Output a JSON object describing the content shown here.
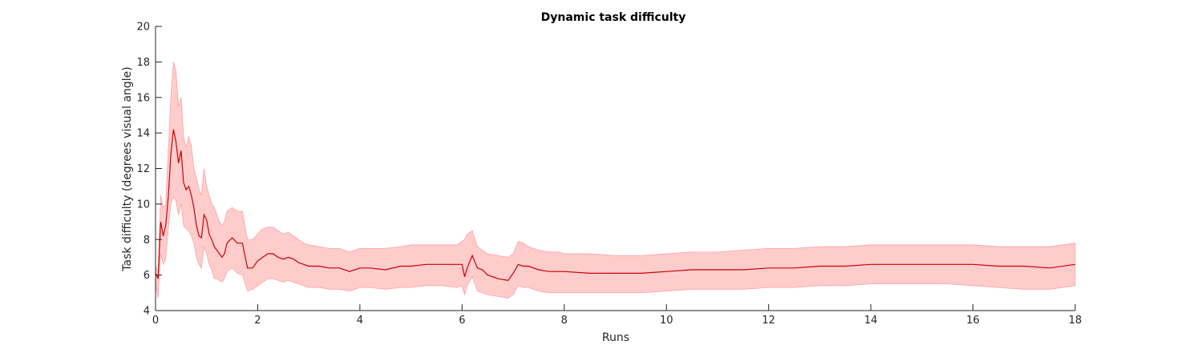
{
  "chart_data": {
    "type": "area",
    "title": "Dynamic task difficulty",
    "xlabel": "Runs",
    "ylabel": "Task difficulty (degrees visual angle)",
    "xlim": [
      0,
      18
    ],
    "ylim": [
      4,
      20
    ],
    "xticks": [
      "0",
      "2",
      "4",
      "6",
      "8",
      "10",
      "12",
      "14",
      "16",
      "18"
    ],
    "yticks": [
      "4",
      "6",
      "8",
      "10",
      "12",
      "14",
      "16",
      "18",
      "20"
    ],
    "grid": false,
    "colors": {
      "line": "#cc0000",
      "band": "#ffcccc",
      "band_edge": "#ff9999",
      "axis": "#262626"
    },
    "series": [
      {
        "x": [
          0,
          0.05,
          0.1,
          0.15,
          0.2,
          0.25,
          0.3,
          0.35,
          0.4,
          0.45,
          0.5,
          0.55,
          0.6,
          0.65,
          0.7,
          0.75,
          0.8,
          0.85,
          0.9,
          0.95,
          1.0,
          1.05,
          1.1,
          1.15,
          1.2,
          1.25,
          1.3,
          1.35,
          1.4,
          1.5,
          1.6,
          1.7,
          1.8,
          1.9,
          2.0,
          2.05,
          2.1,
          2.2,
          2.3,
          2.4,
          2.5,
          2.6,
          2.7,
          2.8,
          2.9,
          3.0,
          3.2,
          3.4,
          3.6,
          3.8,
          4.0,
          4.2,
          4.5,
          4.8,
          5.0,
          5.3,
          5.6,
          5.9,
          6.0,
          6.05,
          6.1,
          6.2,
          6.3,
          6.4,
          6.5,
          6.7,
          6.9,
          7.0,
          7.1,
          7.2,
          7.3,
          7.5,
          7.7,
          7.9,
          8.0,
          8.5,
          9.0,
          9.5,
          10.0,
          10.5,
          11.0,
          11.5,
          12.0,
          12.5,
          13.0,
          13.5,
          14.0,
          14.5,
          15.0,
          15.5,
          16.0,
          16.5,
          17.0,
          17.5,
          18.0
        ],
        "mean": [
          6.1,
          5.8,
          9.0,
          8.2,
          8.8,
          10.4,
          12.8,
          14.2,
          13.5,
          12.3,
          13.0,
          11.2,
          10.8,
          11.0,
          10.5,
          9.8,
          8.8,
          8.2,
          8.1,
          9.4,
          9.1,
          8.3,
          8.0,
          7.6,
          7.4,
          7.2,
          7.0,
          7.2,
          7.8,
          8.1,
          7.8,
          7.8,
          6.4,
          6.4,
          6.8,
          6.9,
          7.0,
          7.2,
          7.2,
          7.0,
          6.9,
          7.0,
          6.9,
          6.7,
          6.6,
          6.5,
          6.5,
          6.4,
          6.4,
          6.2,
          6.4,
          6.4,
          6.3,
          6.5,
          6.5,
          6.6,
          6.6,
          6.6,
          6.6,
          5.9,
          6.4,
          7.1,
          6.4,
          6.3,
          6.0,
          5.8,
          5.7,
          6.1,
          6.6,
          6.5,
          6.5,
          6.3,
          6.2,
          6.2,
          6.2,
          6.1,
          6.1,
          6.1,
          6.2,
          6.3,
          6.3,
          6.3,
          6.4,
          6.4,
          6.5,
          6.5,
          6.6,
          6.6,
          6.6,
          6.6,
          6.6,
          6.5,
          6.5,
          6.4,
          6.6
        ],
        "upper": [
          6.5,
          6.2,
          10.5,
          9.8,
          10.0,
          13.0,
          16.0,
          18.0,
          17.5,
          15.5,
          16.0,
          13.8,
          13.2,
          13.8,
          13.3,
          12.0,
          11.5,
          10.8,
          10.5,
          12.0,
          11.0,
          10.5,
          10.0,
          9.8,
          9.4,
          9.0,
          8.8,
          9.0,
          9.6,
          9.8,
          9.6,
          9.6,
          8.0,
          8.0,
          8.3,
          8.5,
          8.6,
          8.7,
          8.7,
          8.5,
          8.3,
          8.4,
          8.2,
          8.0,
          7.8,
          7.7,
          7.6,
          7.5,
          7.5,
          7.3,
          7.5,
          7.5,
          7.5,
          7.6,
          7.7,
          7.7,
          7.7,
          7.7,
          7.9,
          8.0,
          8.3,
          8.5,
          7.6,
          7.4,
          7.2,
          7.1,
          7.0,
          7.2,
          7.9,
          7.8,
          7.6,
          7.4,
          7.3,
          7.3,
          7.2,
          7.2,
          7.1,
          7.1,
          7.2,
          7.3,
          7.3,
          7.4,
          7.5,
          7.5,
          7.6,
          7.6,
          7.7,
          7.7,
          7.7,
          7.7,
          7.7,
          7.6,
          7.6,
          7.6,
          7.8
        ],
        "lower": [
          5.5,
          4.7,
          7.2,
          6.6,
          6.9,
          8.6,
          10.0,
          10.4,
          10.2,
          9.4,
          10.0,
          8.8,
          8.6,
          8.5,
          8.2,
          7.8,
          7.0,
          6.6,
          6.4,
          7.6,
          7.2,
          6.6,
          6.3,
          5.8,
          5.8,
          5.7,
          5.6,
          5.8,
          6.2,
          6.4,
          6.1,
          6.0,
          5.1,
          5.2,
          5.4,
          5.5,
          5.6,
          5.8,
          5.8,
          5.7,
          5.6,
          5.7,
          5.6,
          5.5,
          5.4,
          5.3,
          5.3,
          5.2,
          5.2,
          5.1,
          5.3,
          5.3,
          5.2,
          5.3,
          5.3,
          5.4,
          5.4,
          5.3,
          5.4,
          4.9,
          5.4,
          5.9,
          5.1,
          5.0,
          4.9,
          4.8,
          4.7,
          4.9,
          5.4,
          5.3,
          5.3,
          5.1,
          5.0,
          5.0,
          5.0,
          5.0,
          5.0,
          5.0,
          5.1,
          5.2,
          5.2,
          5.2,
          5.3,
          5.3,
          5.4,
          5.4,
          5.5,
          5.5,
          5.5,
          5.5,
          5.4,
          5.3,
          5.2,
          5.2,
          5.4
        ]
      }
    ]
  }
}
